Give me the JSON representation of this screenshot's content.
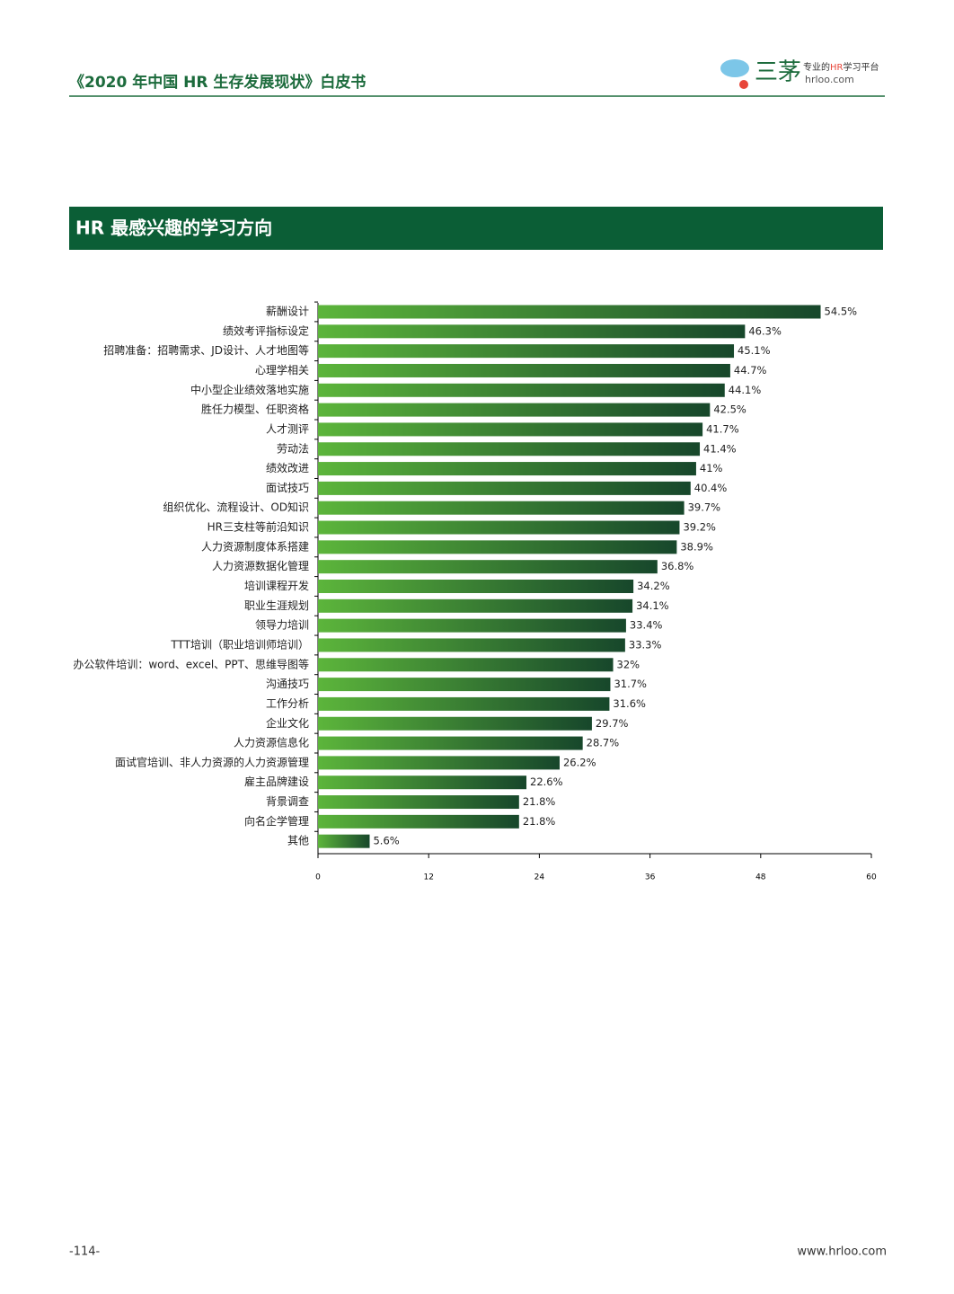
{
  "header": {
    "title": "《2020 年中国 HR 生存发展现状》白皮书",
    "logo_text": "三茅",
    "logo_tagline": [
      "专业的",
      "HR",
      "学习平台"
    ],
    "logo_url": "hrloo.com"
  },
  "section_title": "HR 最感兴趣的学习方向",
  "chart_data": {
    "type": "hbar",
    "categories": [
      "薪酬设计",
      "绩效考评指标设定",
      "招聘准备：招聘需求、JD设计、人才地图等",
      "心理学相关",
      "中小型企业绩效落地实施",
      "胜任力模型、任职资格",
      "人才测评",
      "劳动法",
      "绩效改进",
      "面试技巧",
      "组织优化、流程设计、OD知识",
      "HR三支柱等前沿知识",
      "人力资源制度体系搭建",
      "人力资源数据化管理",
      "培训课程开发",
      "职业生涯规划",
      "领导力培训",
      "TTT培训（职业培训师培训）",
      "办公软件培训：word、excel、PPT、思维导图等",
      "沟通技巧",
      "工作分析",
      "企业文化",
      "人力资源信息化",
      "面试官培训、非人力资源的人力资源管理",
      "雇主品牌建设",
      "背景调查",
      "向名企学管理",
      "其他"
    ],
    "values": [
      54.5,
      46.3,
      45.1,
      44.7,
      44.1,
      42.5,
      41.7,
      41.4,
      41,
      40.4,
      39.7,
      39.2,
      38.9,
      36.8,
      34.2,
      34.1,
      33.4,
      33.3,
      32,
      31.7,
      31.6,
      29.7,
      28.7,
      26.2,
      22.6,
      21.8,
      21.8,
      5.6
    ],
    "value_labels": [
      "54.5%",
      "46.3%",
      "45.1%",
      "44.7%",
      "44.1%",
      "42.5%",
      "41.7%",
      "41.4%",
      "41%",
      "40.4%",
      "39.7%",
      "39.2%",
      "38.9%",
      "36.8%",
      "34.2%",
      "34.1%",
      "33.4%",
      "33.3%",
      "32%",
      "31.7%",
      "31.6%",
      "29.7%",
      "28.7%",
      "26.2%",
      "22.6%",
      "21.8%",
      "21.8%",
      "5.6%"
    ],
    "colors": [
      "#5cb53b",
      "#17472b"
    ],
    "xlim": [
      0,
      60
    ],
    "xticks": [
      0,
      12,
      24,
      36,
      48,
      60
    ]
  },
  "footer": {
    "page": "-114-",
    "url": "www.hrloo.com"
  }
}
